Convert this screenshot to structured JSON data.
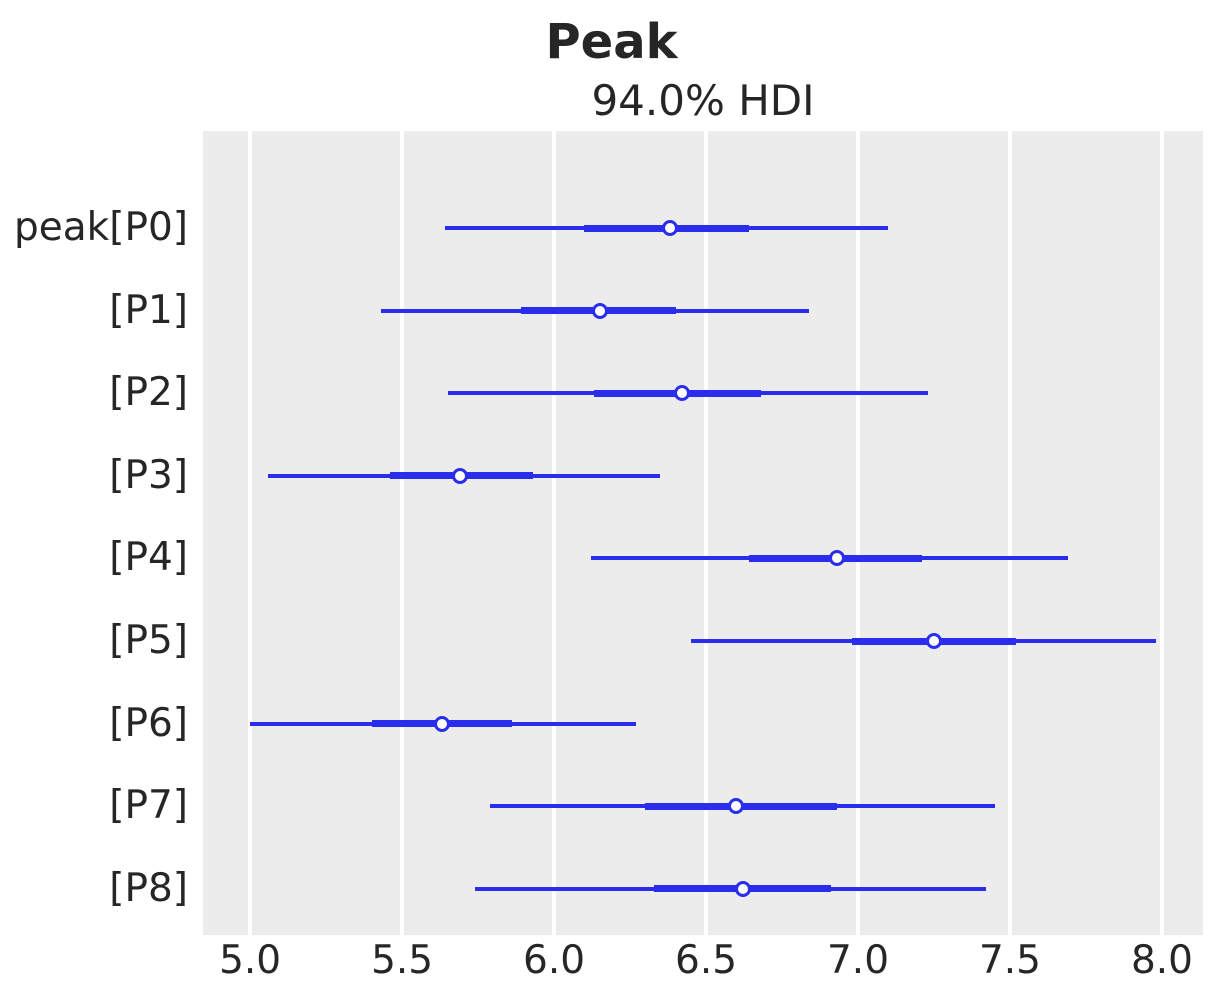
{
  "figure": {
    "title": "Peak",
    "axes_title": "94.0% HDI"
  },
  "colors": {
    "interval_blue": "#2a2eec",
    "plot_background": "#ececec",
    "gridline_white": "#ffffff",
    "text": "#262626",
    "dot_fill": "#fdfdfd"
  },
  "chart_data": {
    "type": "forest",
    "title": "Peak",
    "subtitle": "94.0% HDI",
    "hdi_probability": "94.0%",
    "xlabel": "",
    "ylabel": "",
    "grid": "vertical-white-on-gray",
    "legend": "none",
    "xlim": [
      4.845,
      8.135
    ],
    "xticks": [
      5.0,
      5.5,
      6.0,
      6.5,
      7.0,
      7.5,
      8.0
    ],
    "xtick_labels": [
      "5.0",
      "5.5",
      "6.0",
      "6.5",
      "7.0",
      "7.5",
      "8.0"
    ],
    "rows": [
      {
        "label": "peak[P0]",
        "hdi_low": 5.64,
        "quartile_low": 6.1,
        "median": 6.38,
        "quartile_high": 6.64,
        "hdi_high": 7.1
      },
      {
        "label": "[P1]",
        "hdi_low": 5.43,
        "quartile_low": 5.89,
        "median": 6.15,
        "quartile_high": 6.4,
        "hdi_high": 6.84
      },
      {
        "label": "[P2]",
        "hdi_low": 5.65,
        "quartile_low": 6.13,
        "median": 6.42,
        "quartile_high": 6.68,
        "hdi_high": 7.23
      },
      {
        "label": "[P3]",
        "hdi_low": 5.06,
        "quartile_low": 5.46,
        "median": 5.69,
        "quartile_high": 5.93,
        "hdi_high": 6.35
      },
      {
        "label": "[P4]",
        "hdi_low": 6.12,
        "quartile_low": 6.64,
        "median": 6.93,
        "quartile_high": 7.21,
        "hdi_high": 7.69
      },
      {
        "label": "[P5]",
        "hdi_low": 6.45,
        "quartile_low": 6.98,
        "median": 7.25,
        "quartile_high": 7.52,
        "hdi_high": 7.98
      },
      {
        "label": "[P6]",
        "hdi_low": 5.0,
        "quartile_low": 5.4,
        "median": 5.63,
        "quartile_high": 5.86,
        "hdi_high": 6.27
      },
      {
        "label": "[P7]",
        "hdi_low": 5.79,
        "quartile_low": 6.3,
        "median": 6.6,
        "quartile_high": 6.93,
        "hdi_high": 7.45
      },
      {
        "label": "[P8]",
        "hdi_low": 5.74,
        "quartile_low": 6.33,
        "median": 6.62,
        "quartile_high": 6.91,
        "hdi_high": 7.42
      }
    ]
  }
}
